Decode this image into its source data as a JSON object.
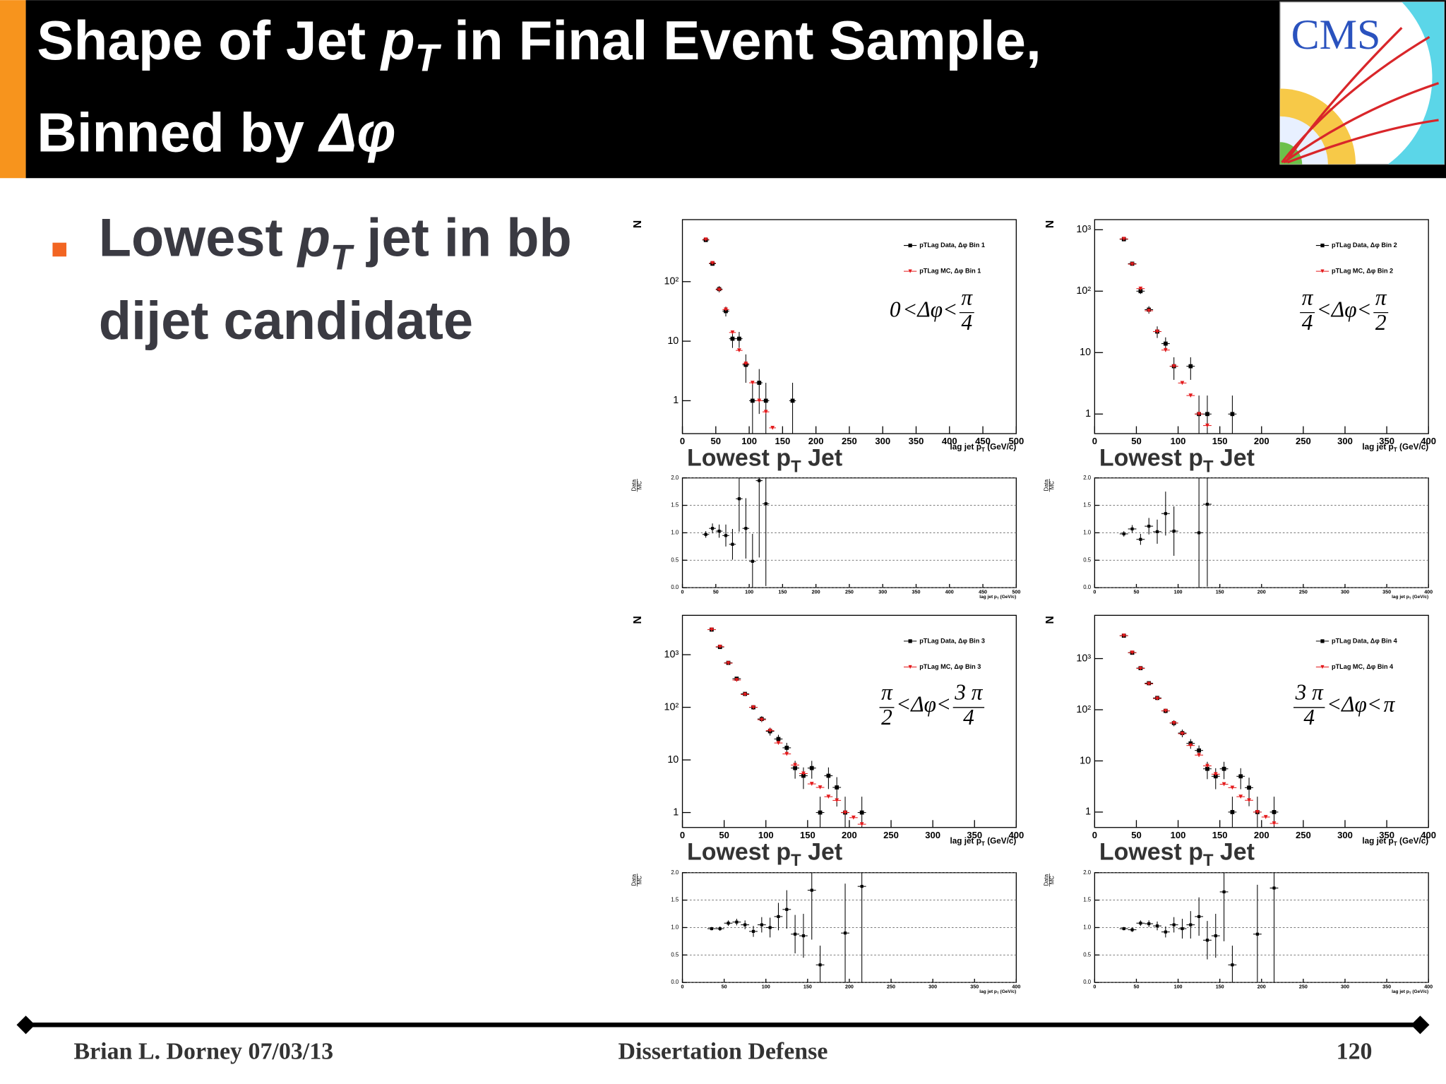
{
  "header": {
    "title": [
      "Shape of Jet ",
      "p",
      "T",
      " in Final Event Sample,"
    ],
    "title_line2": [
      "Binned by ",
      "Δφ"
    ]
  },
  "logo": {
    "text": "CMS"
  },
  "bullet": {
    "line1": [
      "Lowest ",
      "p",
      "T",
      " jet in bb"
    ],
    "line2": "dijet candidate"
  },
  "footer": {
    "left": "Brian L. Dorney 07/03/13",
    "center": "Dissertation Defense",
    "page": "120"
  },
  "chart_data": [
    {
      "type": "scatter",
      "log_y": true,
      "ylabel": "N",
      "xlabel": [
        "lag jet p",
        "T",
        " (GeV/c)"
      ],
      "subtitle": [
        "Lowest p",
        "T",
        " Jet"
      ],
      "xlim": [
        0,
        500
      ],
      "xticks": [
        0,
        50,
        100,
        150,
        200,
        250,
        300,
        350,
        400,
        450,
        500
      ],
      "ylim": [
        0.28,
        1100
      ],
      "yticks": [
        1,
        10,
        {
          "value": 100,
          "label": "10²"
        }
      ],
      "xerr": 5,
      "legend": "upper right",
      "annotation": {
        "lower": "0",
        "relation": "<Δφ<",
        "upper": {
          "num": "π",
          "den": "4"
        }
      },
      "series": [
        {
          "name": "pTLag Data, Δφ Bin 1",
          "color": "#000000",
          "marker": "square",
          "x": [
            35,
            45,
            55,
            65,
            75,
            85,
            95,
            105,
            115,
            125,
            165
          ],
          "values": [
            500,
            200,
            75,
            32,
            11,
            11,
            4,
            1,
            2,
            1,
            1
          ],
          "errors": [
            22,
            14,
            9,
            6,
            3.3,
            3.3,
            2,
            1,
            1.4,
            1,
            1
          ]
        },
        {
          "name": "pTLag MC, Δφ Bin 1",
          "color": "#e41a1c",
          "marker": "triangle",
          "x": [
            35,
            45,
            55,
            65,
            75,
            85,
            95,
            105,
            115,
            125,
            135
          ],
          "values": [
            510,
            205,
            73,
            34,
            14,
            7,
            4.2,
            2,
            1,
            0.65,
            0.35
          ]
        }
      ]
    },
    {
      "type": "scatter",
      "ylabel": [
        "Data",
        "MC"
      ],
      "xlabel": [
        "lag jet p",
        "T",
        " (GeV/c)"
      ],
      "grid": true,
      "xlim": [
        0,
        500
      ],
      "xticks": [
        0,
        50,
        100,
        150,
        200,
        250,
        300,
        350,
        400,
        450,
        500
      ],
      "ylim": [
        0,
        2
      ],
      "yticks": [
        {
          "value": 0,
          "label": "0.0"
        },
        0.5,
        {
          "value": 1,
          "label": "1.0"
        },
        1.5,
        {
          "value": 2,
          "label": "2.0"
        }
      ],
      "xerr": 5,
      "series": [
        {
          "color": "#000000",
          "marker": "square",
          "x": [
            35,
            45,
            55,
            65,
            75,
            85,
            95,
            105,
            115,
            125
          ],
          "values": [
            0.97,
            1.08,
            1.03,
            0.95,
            0.79,
            1.62,
            1.08,
            0.48,
            1.95,
            1.53
          ],
          "errors": [
            0.06,
            0.09,
            0.12,
            0.2,
            0.28,
            0.6,
            0.55,
            0.5,
            1.4,
            1.5
          ]
        }
      ]
    },
    {
      "type": "scatter",
      "log_y": true,
      "ylabel": "N",
      "xlabel": [
        "lag jet p",
        "T",
        " (GeV/c)"
      ],
      "subtitle": [
        "Lowest p",
        "T",
        " Jet"
      ],
      "xlim": [
        0,
        400
      ],
      "xticks": [
        0,
        50,
        100,
        150,
        200,
        250,
        300,
        350,
        400
      ],
      "ylim": [
        0.48,
        1460
      ],
      "yticks": [
        1,
        10,
        {
          "value": 100,
          "label": "10²"
        },
        {
          "value": 1000,
          "label": "10³"
        }
      ],
      "xerr": 5,
      "legend": "upper right",
      "annotation": {
        "lower": {
          "num": "π",
          "den": "4"
        },
        "relation": "<Δφ<",
        "upper": {
          "num": "π",
          "den": "2"
        }
      },
      "series": [
        {
          "name": "pTLag Data, Δφ Bin 2",
          "color": "#000000",
          "marker": "square",
          "x": [
            35,
            45,
            55,
            65,
            75,
            85,
            95,
            115,
            125,
            135,
            165
          ],
          "values": [
            700,
            280,
            100,
            50,
            22,
            14,
            6,
            6,
            1,
            1,
            1
          ],
          "errors": [
            26,
            17,
            10,
            7,
            4.7,
            3.7,
            2.4,
            2.4,
            1,
            1,
            1
          ]
        },
        {
          "name": "pTLag MC, Δφ Bin 2",
          "color": "#e41a1c",
          "marker": "triangle",
          "x": [
            35,
            45,
            55,
            65,
            75,
            85,
            95,
            105,
            115,
            125,
            135
          ],
          "values": [
            710,
            275,
            110,
            48,
            22,
            11,
            6,
            3.2,
            2,
            1,
            0.65
          ]
        }
      ]
    },
    {
      "type": "scatter",
      "ylabel": [
        "Data",
        "MC"
      ],
      "xlabel": [
        "lag jet p",
        "T",
        " (GeV/c)"
      ],
      "grid": true,
      "xlim": [
        0,
        400
      ],
      "xticks": [
        0,
        50,
        100,
        150,
        200,
        250,
        300,
        350,
        400
      ],
      "ylim": [
        0,
        2
      ],
      "yticks": [
        {
          "value": 0,
          "label": "0.0"
        },
        0.5,
        {
          "value": 1,
          "label": "1.0"
        },
        1.5,
        {
          "value": 2,
          "label": "2.0"
        }
      ],
      "xerr": 5,
      "series": [
        {
          "color": "#000000",
          "marker": "square",
          "x": [
            35,
            45,
            55,
            65,
            75,
            85,
            95,
            125,
            135
          ],
          "values": [
            0.98,
            1.07,
            0.88,
            1.12,
            1.02,
            1.35,
            1.03,
            1.0,
            1.52
          ],
          "errors": [
            0.05,
            0.07,
            0.1,
            0.15,
            0.22,
            0.4,
            0.45,
            1.0,
            1.5
          ]
        }
      ]
    },
    {
      "type": "scatter",
      "log_y": true,
      "ylabel": "N",
      "xlabel": [
        "lag jet p",
        "T",
        " (GeV/c)"
      ],
      "subtitle": [
        "Lowest p",
        "T",
        " Jet"
      ],
      "xlim": [
        0,
        400
      ],
      "xticks": [
        0,
        50,
        100,
        150,
        200,
        250,
        300,
        350,
        400
      ],
      "ylim": [
        0.52,
        5600
      ],
      "yticks": [
        1,
        10,
        {
          "value": 100,
          "label": "10²"
        },
        {
          "value": 1000,
          "label": "10³"
        }
      ],
      "xerr": 5,
      "legend": "upper right",
      "annotation": {
        "lower": {
          "num": "π",
          "den": "2"
        },
        "relation": "<Δφ<",
        "upper": {
          "num": "3 π",
          "den": "4"
        }
      },
      "series": [
        {
          "name": "pTLag Data, Δφ Bin 3",
          "color": "#000000",
          "marker": "square",
          "x": [
            35,
            45,
            55,
            65,
            75,
            85,
            95,
            105,
            115,
            125,
            135,
            145,
            155,
            165,
            175,
            185,
            195,
            215
          ],
          "values": [
            3000,
            1400,
            700,
            350,
            180,
            100,
            60,
            35,
            25,
            17,
            7,
            5,
            7,
            1,
            5,
            3,
            1,
            1
          ],
          "errors": [
            55,
            37,
            26,
            19,
            13,
            10,
            7.7,
            6,
            5,
            4.1,
            2.6,
            2.2,
            2.6,
            1,
            2.2,
            1.7,
            1,
            1
          ]
        },
        {
          "name": "pTLag MC, Δφ Bin 3",
          "color": "#e41a1c",
          "marker": "triangle",
          "x": [
            35,
            45,
            55,
            65,
            75,
            85,
            95,
            105,
            115,
            125,
            135,
            145,
            155,
            165,
            175,
            185,
            195,
            205,
            215
          ],
          "values": [
            3000,
            1420,
            690,
            330,
            175,
            100,
            58,
            36,
            21,
            13,
            8,
            5.5,
            3.5,
            3,
            2,
            1.7,
            1,
            0.8,
            0.6
          ]
        }
      ]
    },
    {
      "type": "scatter",
      "ylabel": [
        "Data",
        "MC"
      ],
      "xlabel": [
        "lag jet p",
        "T",
        " (GeV/c)"
      ],
      "grid": true,
      "xlim": [
        0,
        400
      ],
      "xticks": [
        0,
        50,
        100,
        150,
        200,
        250,
        300,
        350,
        400
      ],
      "ylim": [
        0,
        2
      ],
      "yticks": [
        {
          "value": 0,
          "label": "0.0"
        },
        0.5,
        {
          "value": 1,
          "label": "1.0"
        },
        1.5,
        {
          "value": 2,
          "label": "2.0"
        }
      ],
      "xerr": 5,
      "series": [
        {
          "color": "#000000",
          "marker": "square",
          "x": [
            35,
            45,
            55,
            65,
            75,
            85,
            95,
            105,
            115,
            125,
            135,
            145,
            155,
            165,
            195,
            215
          ],
          "values": [
            0.98,
            0.98,
            1.08,
            1.1,
            1.05,
            0.93,
            1.05,
            1.0,
            1.2,
            1.33,
            0.88,
            0.85,
            1.68,
            0.32,
            0.9,
            1.75
          ],
          "errors": [
            0.03,
            0.04,
            0.05,
            0.06,
            0.08,
            0.1,
            0.14,
            0.18,
            0.25,
            0.35,
            0.35,
            0.4,
            0.9,
            0.35,
            0.9,
            1.75
          ]
        }
      ]
    },
    {
      "type": "scatter",
      "log_y": true,
      "ylabel": "N",
      "xlabel": [
        "lag jet p",
        "T",
        " (GeV/c)"
      ],
      "subtitle": [
        "Lowest p",
        "T",
        " Jet"
      ],
      "xlim": [
        0,
        400
      ],
      "xticks": [
        0,
        50,
        100,
        150,
        200,
        250,
        300,
        350,
        400
      ],
      "ylim": [
        0.5,
        7000
      ],
      "yticks": [
        1,
        10,
        {
          "value": 100,
          "label": "10²"
        },
        {
          "value": 1000,
          "label": "10³"
        }
      ],
      "xerr": 5,
      "legend": "upper right",
      "annotation": {
        "lower": {
          "num": "3 π",
          "den": "4"
        },
        "relation": "<Δφ<",
        "upper": "π"
      },
      "series": [
        {
          "name": "pTLag Data, Δφ Bin 4",
          "color": "#000000",
          "marker": "square",
          "x": [
            35,
            45,
            55,
            65,
            75,
            85,
            95,
            105,
            115,
            125,
            135,
            145,
            155,
            165,
            175,
            185,
            195,
            215
          ],
          "values": [
            2800,
            1300,
            650,
            330,
            170,
            95,
            55,
            35,
            22,
            16,
            7,
            5,
            7,
            1,
            5,
            3,
            1,
            1
          ],
          "errors": [
            53,
            36,
            25,
            18,
            13,
            9.7,
            7.4,
            6,
            4.7,
            4,
            2.6,
            2.2,
            2.6,
            1,
            2.2,
            1.7,
            1,
            1
          ]
        },
        {
          "name": "pTLag MC, Δφ Bin 4",
          "color": "#e41a1c",
          "marker": "triangle",
          "x": [
            35,
            45,
            55,
            65,
            75,
            85,
            95,
            105,
            115,
            125,
            135,
            145,
            155,
            165,
            175,
            185,
            195,
            205,
            215
          ],
          "values": [
            2800,
            1310,
            640,
            320,
            165,
            95,
            55,
            34,
            20,
            13,
            8,
            5.5,
            3.5,
            3,
            2,
            1.7,
            1,
            0.8,
            0.6
          ]
        }
      ]
    },
    {
      "type": "scatter",
      "ylabel": [
        "Data",
        "MC"
      ],
      "xlabel": [
        "lag jet p",
        "T",
        " (GeV/c)"
      ],
      "grid": true,
      "xlim": [
        0,
        400
      ],
      "xticks": [
        0,
        50,
        100,
        150,
        200,
        250,
        300,
        350,
        400
      ],
      "ylim": [
        0,
        2
      ],
      "yticks": [
        {
          "value": 0,
          "label": "0.0"
        },
        0.5,
        {
          "value": 1,
          "label": "1.0"
        },
        1.5,
        {
          "value": 2,
          "label": "2.0"
        }
      ],
      "xerr": 5,
      "series": [
        {
          "color": "#000000",
          "marker": "square",
          "x": [
            35,
            45,
            55,
            65,
            75,
            85,
            95,
            105,
            115,
            125,
            135,
            145,
            155,
            165,
            195,
            215
          ],
          "values": [
            0.98,
            0.96,
            1.08,
            1.07,
            1.03,
            0.92,
            1.05,
            0.98,
            1.05,
            1.2,
            0.77,
            0.85,
            1.65,
            0.32,
            0.88,
            1.72
          ],
          "errors": [
            0.03,
            0.04,
            0.05,
            0.06,
            0.08,
            0.1,
            0.14,
            0.18,
            0.25,
            0.35,
            0.35,
            0.4,
            0.9,
            0.35,
            0.9,
            1.72
          ]
        }
      ]
    }
  ]
}
